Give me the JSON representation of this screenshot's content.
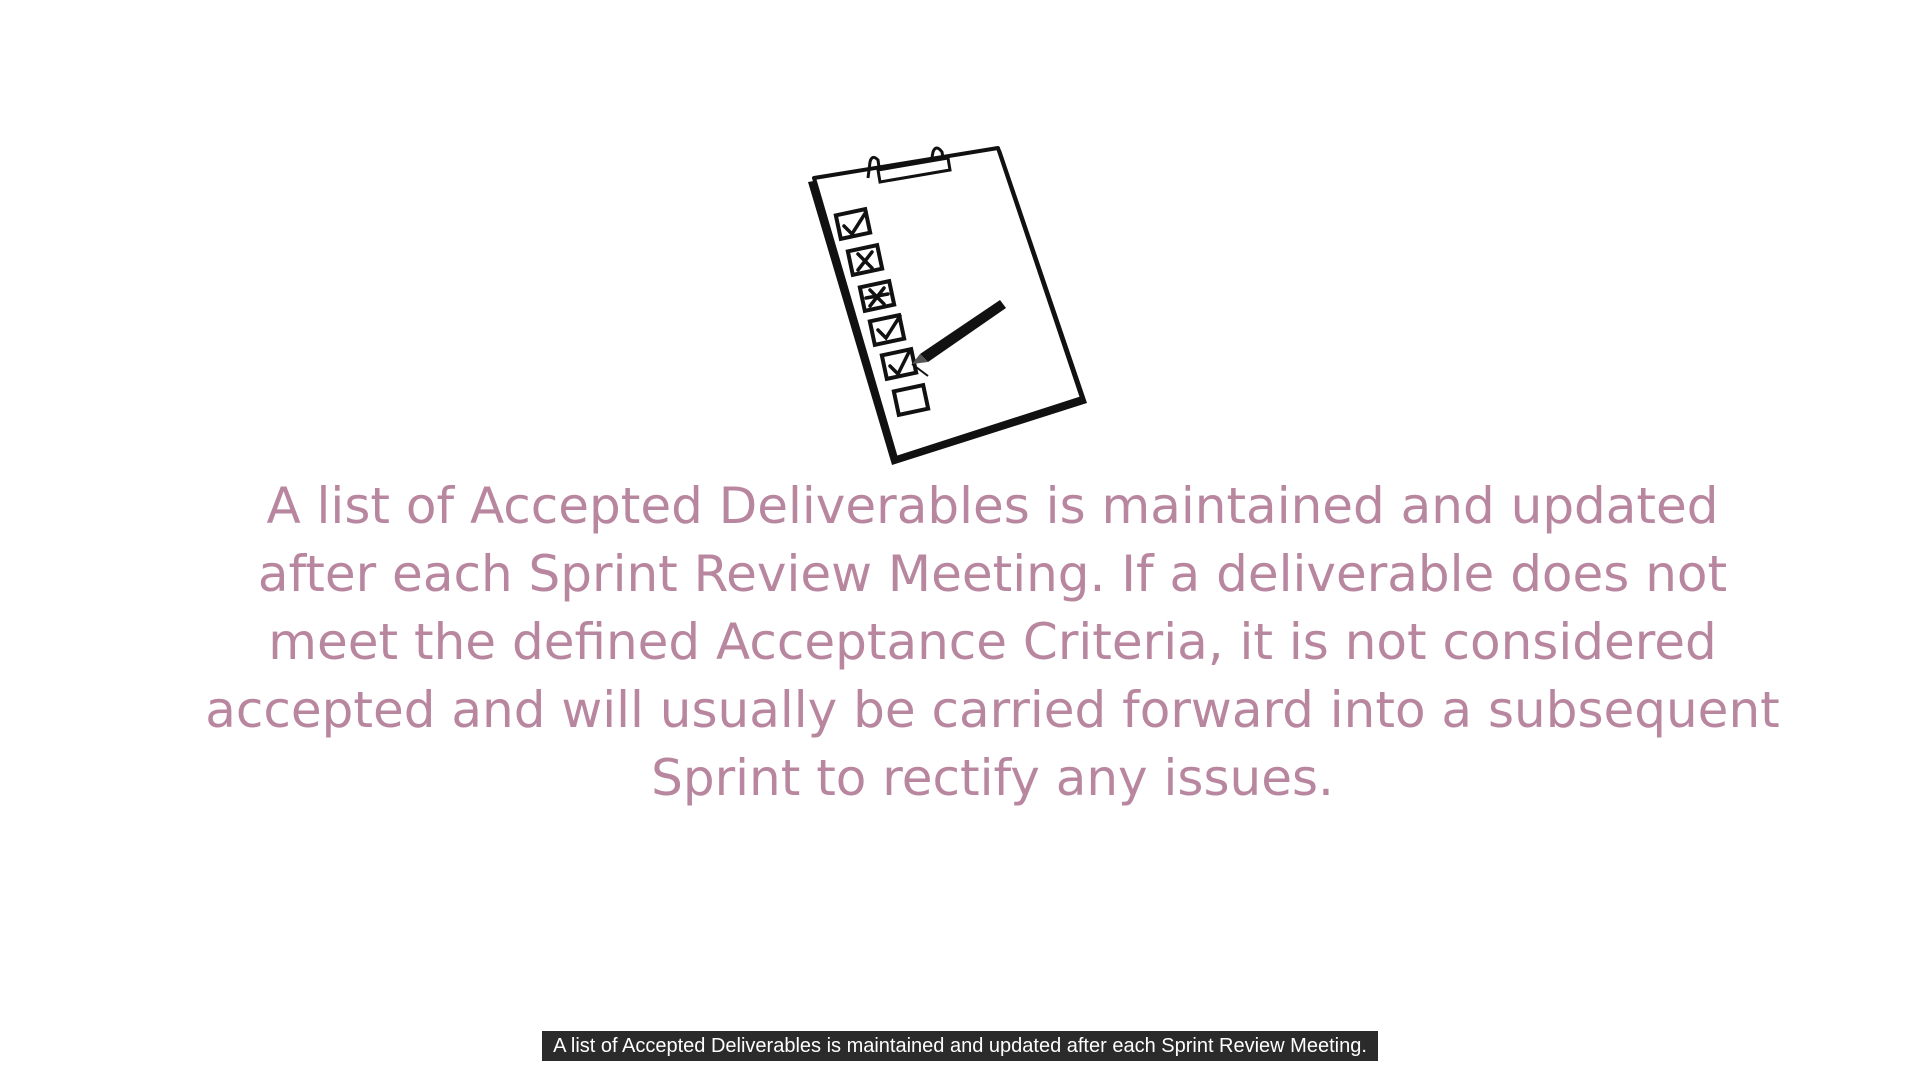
{
  "slide": {
    "illustration": {
      "icon": "clipboard-checklist-icon",
      "checkbox_marks": [
        "check",
        "cross",
        "cross",
        "check",
        "check",
        "empty"
      ]
    },
    "body_text": "A list of Accepted Deliverables is maintained and updated after each Sprint Review Meeting. If a deliverable does not meet the defined Acceptance Criteria, it is not considered accepted and will usually be carried forward into a subsequent Sprint to rectify any issues.",
    "text_color": "#b8879f"
  },
  "caption": {
    "text": "A list of Accepted Deliverables is maintained and updated after each Sprint Review Meeting."
  }
}
